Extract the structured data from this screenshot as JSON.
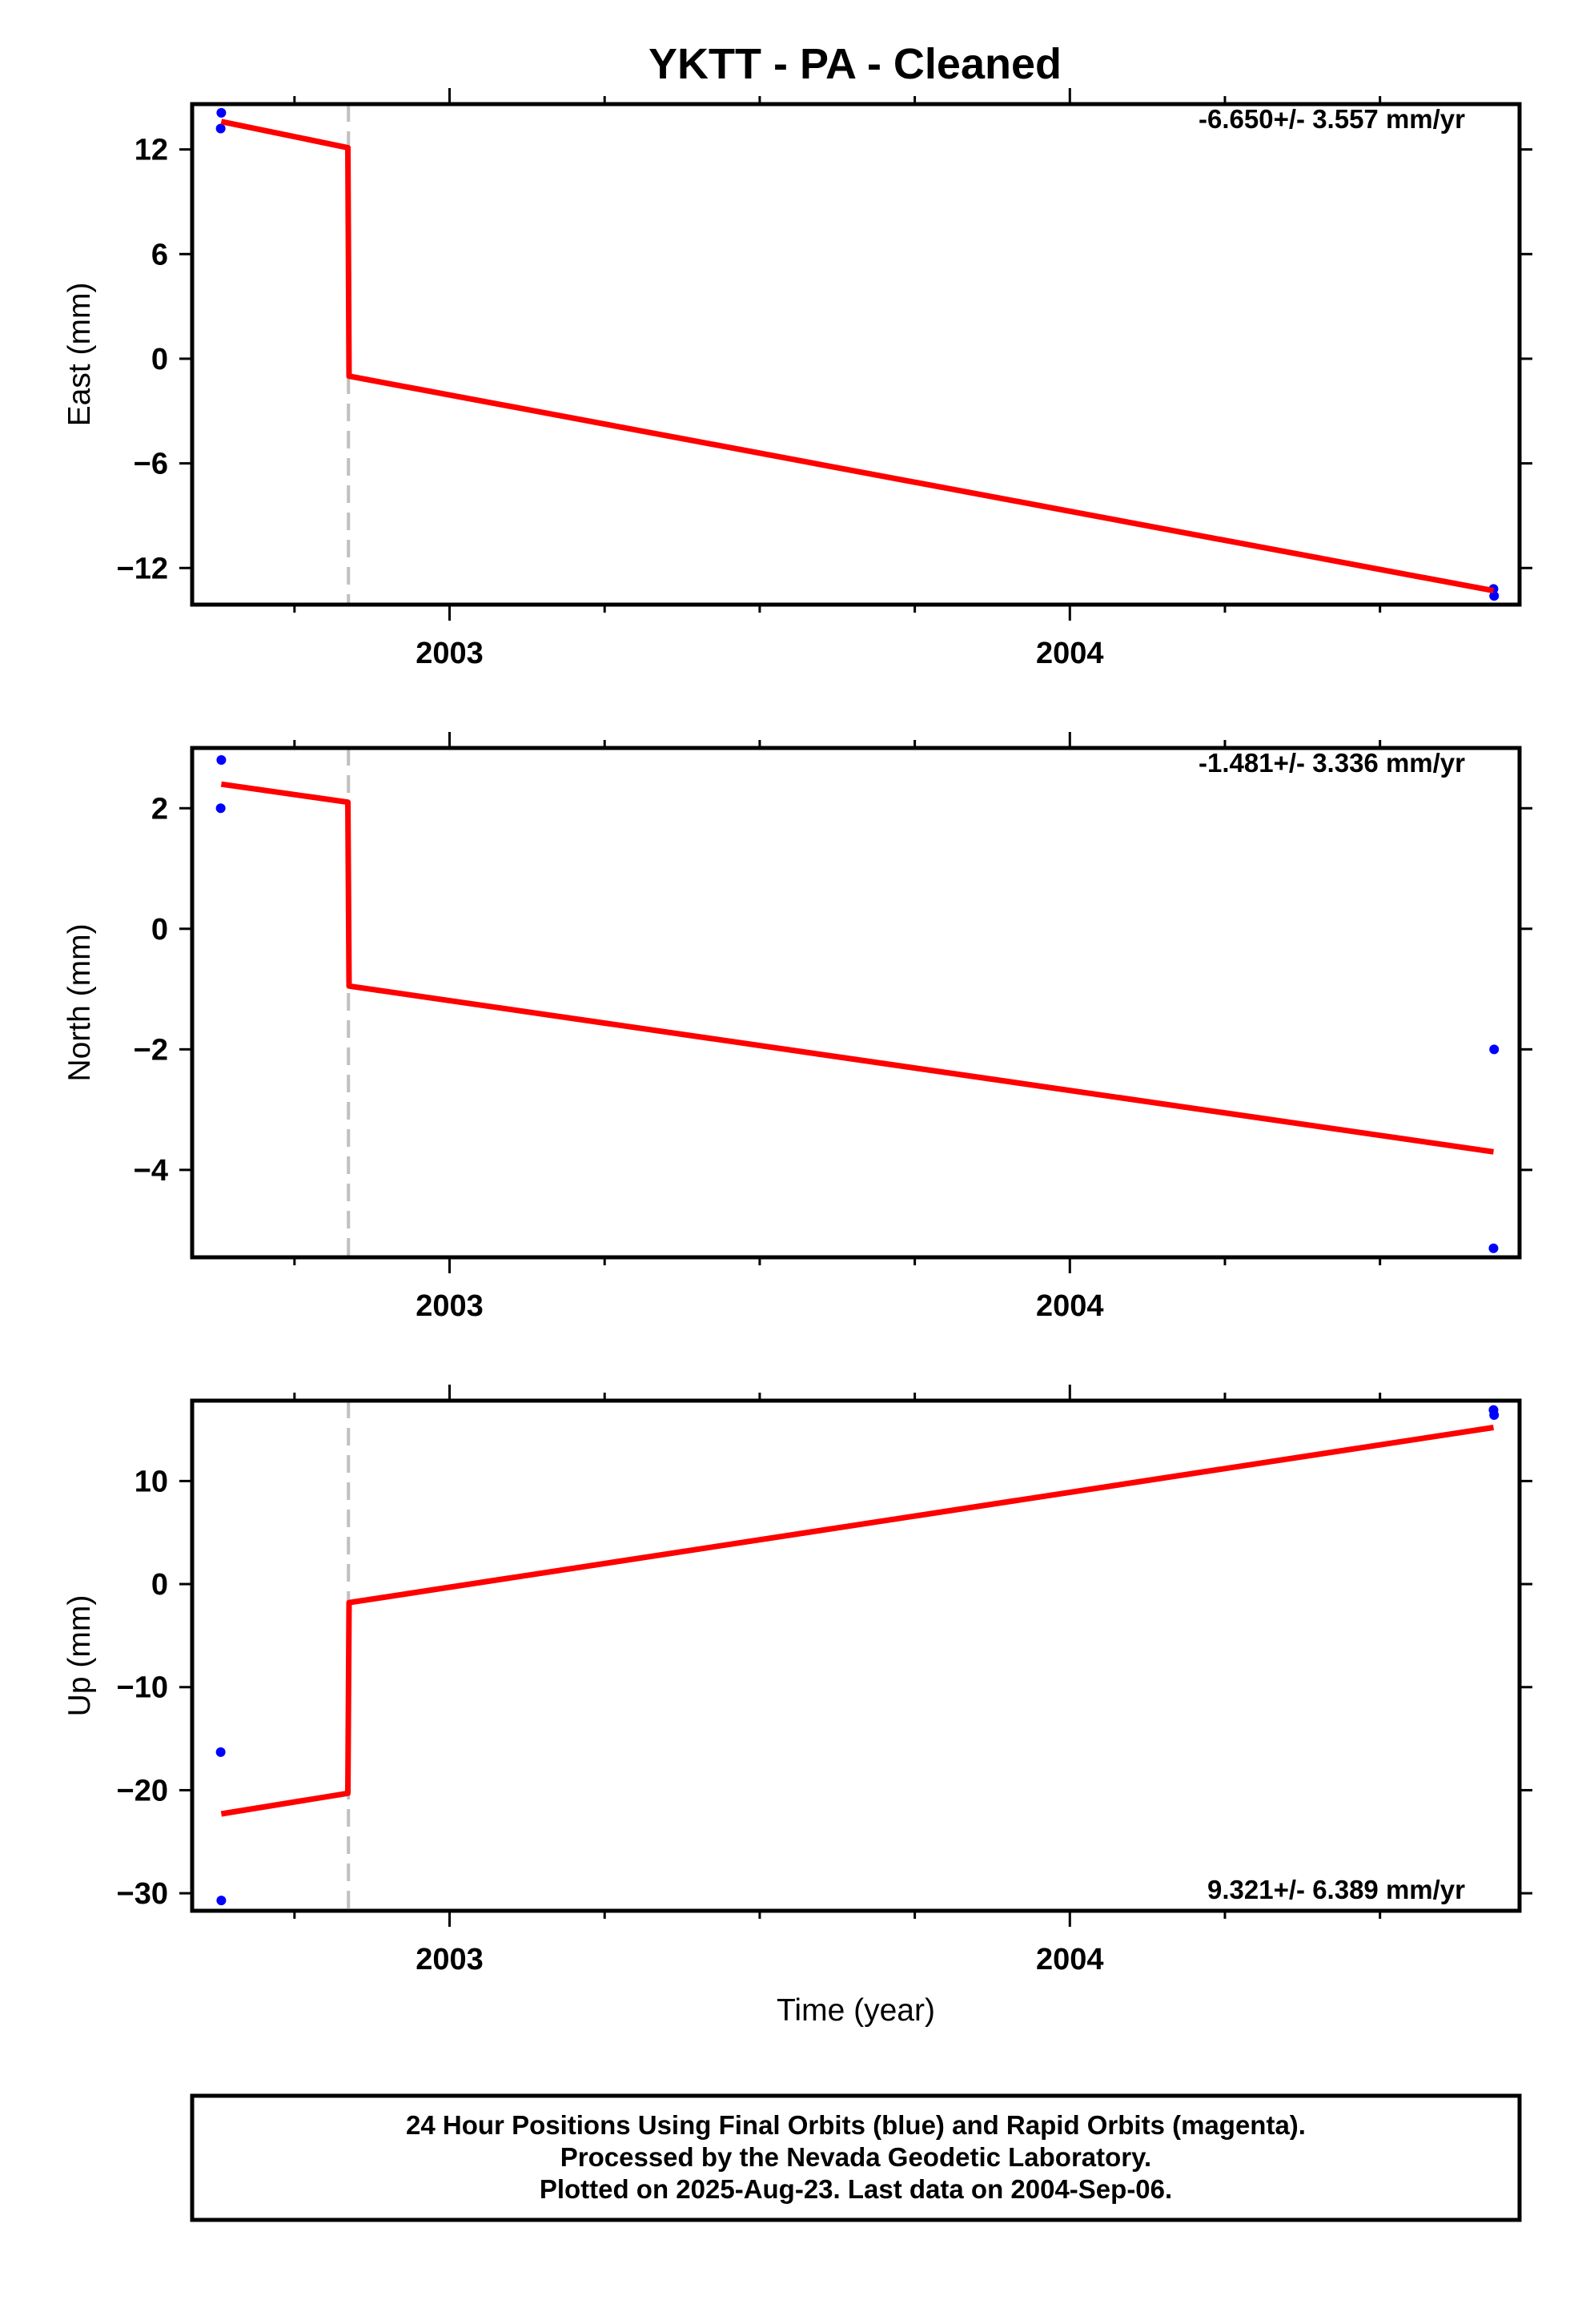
{
  "title": "YKTT  - PA - Cleaned",
  "footer": [
    "24 Hour Positions Using Final Orbits (blue) and Rapid Orbits (magenta).",
    "Processed by the Nevada Geodetic Laboratory.",
    "Plotted on 2025-Aug-23. Last data on 2004-Sep-06."
  ],
  "colors": {
    "final_orbits": "#0000ff",
    "fit_line": "#ff0000",
    "break_line": "#c0c0c0",
    "frame": "#000000"
  },
  "chart_data": [
    {
      "type": "scatter",
      "ylabel": "East (mm)",
      "xlabel": "",
      "xlim": [
        2002.585,
        2004.725
      ],
      "ylim": [
        -14.1,
        14.6
      ],
      "yticks": [
        -12,
        -6,
        0,
        6,
        12
      ],
      "yticklabels": [
        "−12",
        "−6",
        "0",
        "6",
        "12"
      ],
      "xticks": [
        2003,
        2004
      ],
      "xticklabels": [
        "2003",
        "2004"
      ],
      "grid": false,
      "rate_label": "-6.650+/- 3.557 mm/yr",
      "rate_position": "top-right",
      "break_x": 2002.837,
      "series": [
        {
          "type": "scatter",
          "color": "#0000ff",
          "points": [
            [
              2002.632,
              14.1
            ],
            [
              2002.631,
              13.2
            ],
            [
              2004.683,
              -13.2
            ],
            [
              2004.684,
              -13.6
            ]
          ]
        },
        {
          "type": "line",
          "color": "#ff0000",
          "points": [
            [
              2002.632,
              13.6
            ],
            [
              2002.836,
              12.1
            ],
            [
              2002.838,
              -1.0
            ],
            [
              2004.683,
              -13.3
            ]
          ]
        }
      ]
    },
    {
      "type": "scatter",
      "ylabel": "North (mm)",
      "xlabel": "",
      "xlim": [
        2002.585,
        2004.725
      ],
      "ylim": [
        -5.45,
        3.0
      ],
      "yticks": [
        -4,
        -2,
        0,
        2
      ],
      "yticklabels": [
        "−4",
        "−2",
        "0",
        "2"
      ],
      "xticks": [
        2003,
        2004
      ],
      "xticklabels": [
        "2003",
        "2004"
      ],
      "grid": false,
      "rate_label": "-1.481+/- 3.336 mm/yr",
      "rate_position": "top-right",
      "break_x": 2002.837,
      "series": [
        {
          "type": "scatter",
          "color": "#0000ff",
          "points": [
            [
              2002.632,
              2.8
            ],
            [
              2002.631,
              2.0
            ],
            [
              2004.684,
              -2.0
            ],
            [
              2004.683,
              -5.3
            ]
          ]
        },
        {
          "type": "line",
          "color": "#ff0000",
          "points": [
            [
              2002.632,
              2.4
            ],
            [
              2002.836,
              2.1
            ],
            [
              2002.838,
              -0.95
            ],
            [
              2004.683,
              -3.7
            ]
          ]
        }
      ]
    },
    {
      "type": "scatter",
      "ylabel": "Up (mm)",
      "xlabel": "Time (year)",
      "xlim": [
        2002.585,
        2004.725
      ],
      "ylim": [
        -31.7,
        17.8
      ],
      "yticks": [
        -30,
        -20,
        -10,
        0,
        10
      ],
      "yticklabels": [
        "−30",
        "−20",
        "−10",
        "0",
        "10"
      ],
      "xticks": [
        2003,
        2004
      ],
      "xticklabels": [
        "2003",
        "2004"
      ],
      "grid": false,
      "rate_label": "9.321+/- 6.389 mm/yr",
      "rate_position": "bottom-right",
      "break_x": 2002.837,
      "series": [
        {
          "type": "scatter",
          "color": "#0000ff",
          "points": [
            [
              2002.631,
              -16.3
            ],
            [
              2002.632,
              -30.7
            ],
            [
              2004.683,
              16.9
            ],
            [
              2004.684,
              16.4
            ]
          ]
        },
        {
          "type": "line",
          "color": "#ff0000",
          "points": [
            [
              2002.632,
              -22.3
            ],
            [
              2002.836,
              -20.3
            ],
            [
              2002.838,
              -1.8
            ],
            [
              2004.683,
              15.2
            ]
          ]
        }
      ]
    }
  ]
}
